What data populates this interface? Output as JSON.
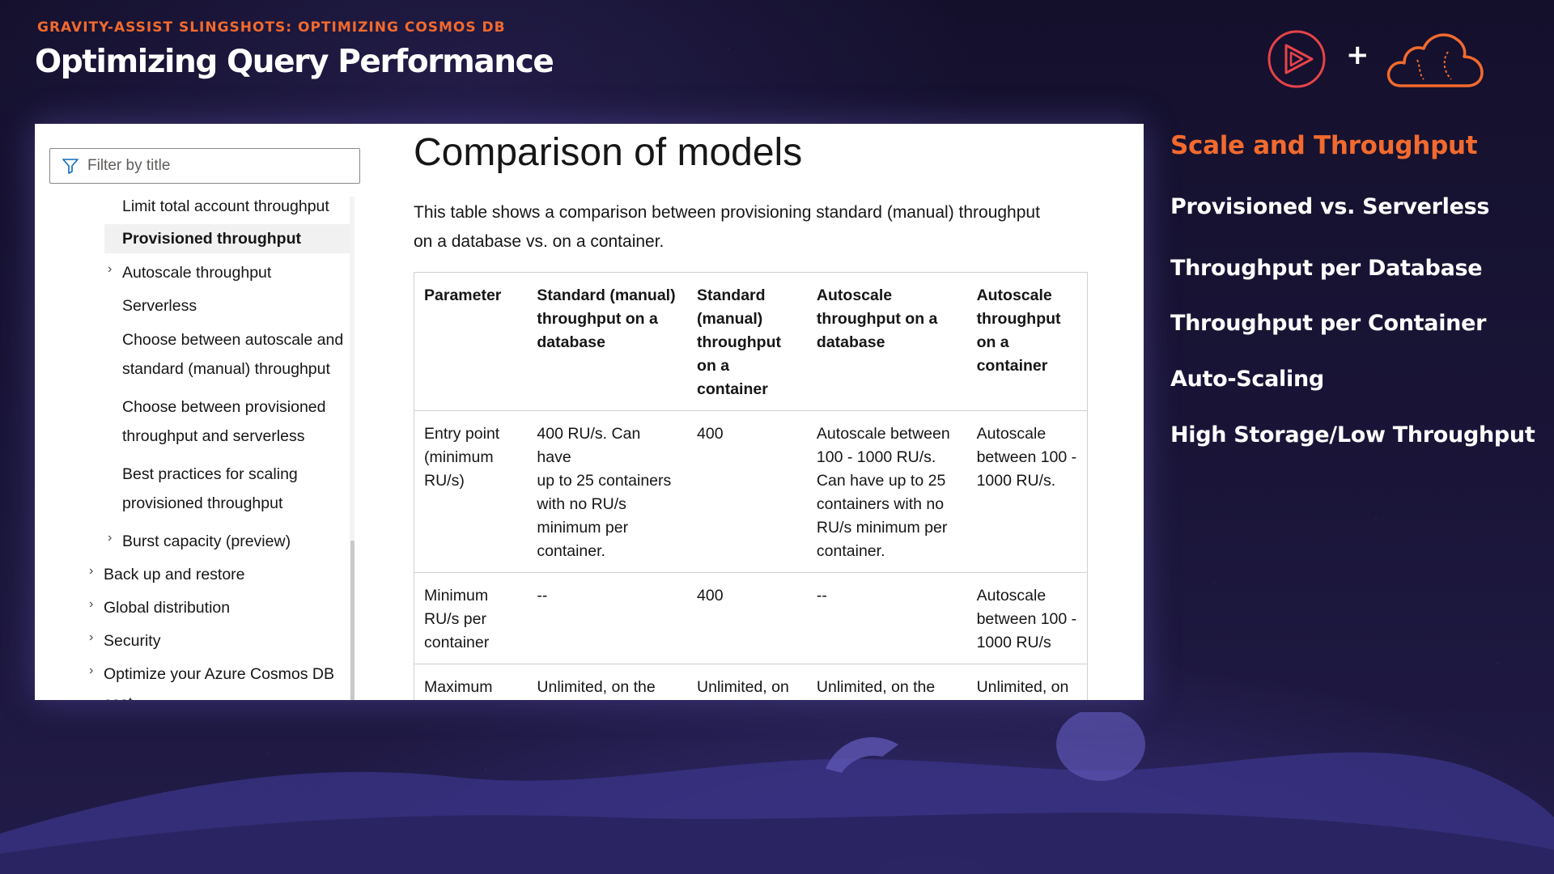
{
  "header": {
    "kicker": "GRAVITY-ASSIST SLINGSHOTS: OPTIMIZING COSMOS DB",
    "title": "Optimizing Query Performance",
    "plus": "+"
  },
  "colors": {
    "accent": "#f26a2e",
    "logo_red": "#e8434a",
    "background": "#171233"
  },
  "icons": [
    "play-logo-icon",
    "cloud-logo-icon",
    "filter-icon",
    "chevron-right-icon"
  ],
  "docs": {
    "filter_placeholder": "Filter by title",
    "toc": [
      {
        "label": "Limit total account throughput",
        "level": 2,
        "chevron": false
      },
      {
        "label": "Provisioned throughput",
        "level": 2,
        "chevron": false,
        "active": true
      },
      {
        "label": "Autoscale throughput",
        "level": 2,
        "chevron": true
      },
      {
        "label": "Serverless",
        "level": 2,
        "chevron": false
      },
      {
        "label": "Choose between autoscale and",
        "label2": "standard (manual) throughput",
        "level": 2,
        "chevron": false
      },
      {
        "label": "Choose between provisioned",
        "label2": "throughput and serverless",
        "level": 2,
        "chevron": false
      },
      {
        "label": "Best practices for scaling",
        "label2": "provisioned throughput",
        "level": 2,
        "chevron": false
      },
      {
        "label": "Burst capacity (preview)",
        "level": 2,
        "chevron": true
      },
      {
        "label": "Back up and restore",
        "level": 1,
        "chevron": true
      },
      {
        "label": "Global distribution",
        "level": 1,
        "chevron": true
      },
      {
        "label": "Security",
        "level": 1,
        "chevron": true
      },
      {
        "label": "Optimize your Azure Cosmos DB",
        "label2": "cost",
        "level": 1,
        "chevron": true
      }
    ],
    "title": "Comparison of models",
    "intro_line1": "This table shows a comparison between provisioning standard (manual) throughput",
    "intro_line2": "on a database vs. on a container.",
    "table": {
      "headers": [
        [
          "Parameter"
        ],
        [
          "Standard (manual)",
          "throughput on a",
          "database"
        ],
        [
          "Standard",
          "(manual)",
          "throughput",
          "on a",
          "container"
        ],
        [
          "Autoscale",
          "throughput on a",
          "database"
        ],
        [
          "Autoscale",
          "throughput",
          "on a",
          "container"
        ]
      ],
      "rows": [
        [
          [
            "Entry point",
            "(minimum",
            "RU/s)"
          ],
          [
            "400 RU/s. Can have",
            "up to 25 containers",
            "with no RU/s",
            "minimum per",
            "container."
          ],
          [
            "400"
          ],
          [
            "Autoscale between",
            "100 - 1000 RU/s.",
            "Can have up to 25",
            "containers with no",
            "RU/s minimum per",
            "container."
          ],
          [
            "Autoscale",
            "between 100 -",
            "1000 RU/s."
          ]
        ],
        [
          [
            "Minimum",
            "RU/s per",
            "container"
          ],
          [
            "--"
          ],
          [
            "400"
          ],
          [
            "--"
          ],
          [
            "Autoscale",
            "between 100 -",
            "1000 RU/s"
          ]
        ],
        [
          [
            "Maximum"
          ],
          [
            "Unlimited, on the"
          ],
          [
            "Unlimited, on"
          ],
          [
            "Unlimited, on the"
          ],
          [
            "Unlimited, on"
          ]
        ]
      ]
    }
  },
  "sidebar": {
    "items": [
      {
        "label": "Scale and Throughput",
        "highlighted": true
      },
      {
        "label": "Provisioned vs. Serverless"
      },
      {
        "label": "Throughput per Database"
      },
      {
        "label": "Throughput per Container"
      },
      {
        "label": "Auto-Scaling"
      },
      {
        "label": "High Storage/Low Throughput"
      }
    ]
  }
}
